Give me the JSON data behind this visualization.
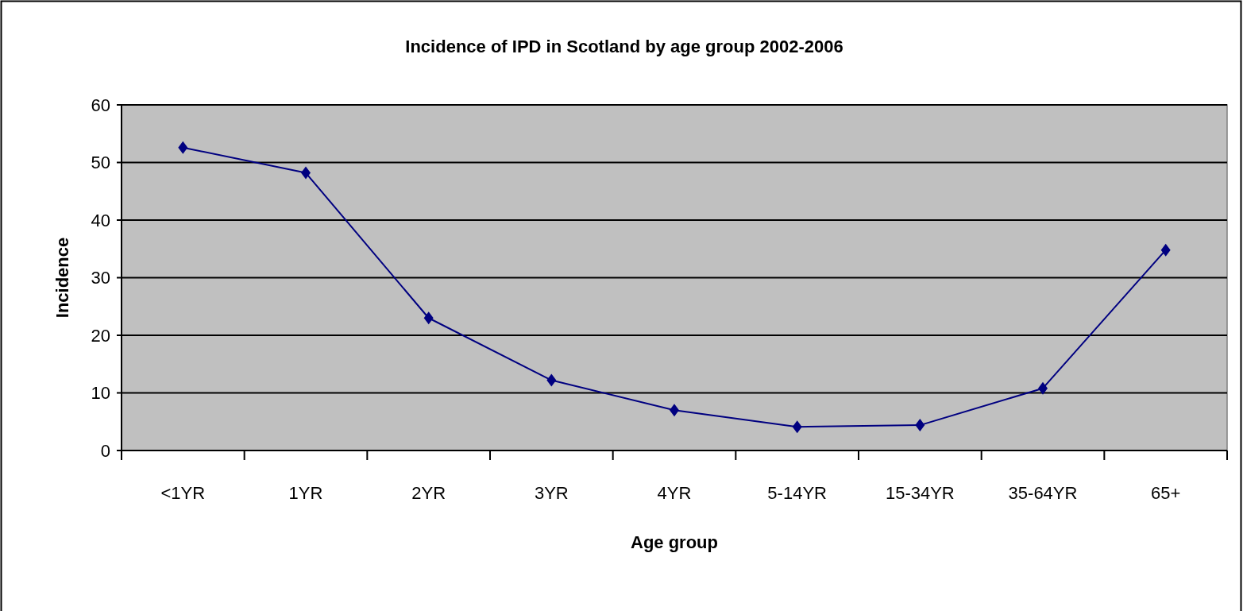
{
  "chart_data": {
    "type": "line",
    "title": "Incidence of IPD in Scotland by age group 2002-2006",
    "xlabel": "Age group",
    "ylabel": "Incidence",
    "categories": [
      "<1YR",
      "1YR",
      "2YR",
      "3YR",
      "4YR",
      "5-14YR",
      "15-34YR",
      "35-64YR",
      "65+"
    ],
    "series": [
      {
        "color": "#000080",
        "values": [
          52.6,
          48.2,
          23.0,
          12.2,
          7.0,
          4.1,
          4.4,
          10.8,
          34.8
        ]
      }
    ],
    "ylim": [
      0,
      60
    ],
    "yticks": [
      0,
      10,
      20,
      30,
      40,
      50,
      60
    ],
    "grid": "y",
    "marker": "diamond"
  }
}
